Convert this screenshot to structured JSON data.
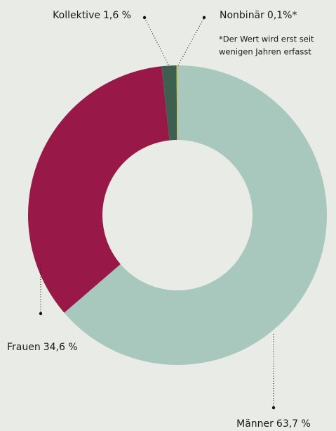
{
  "chart_data": {
    "type": "donut",
    "categories": [
      "Männer",
      "Frauen",
      "Kollektive",
      "Nonbinär"
    ],
    "values": [
      63.7,
      34.6,
      1.6,
      0.1
    ],
    "value_labels": [
      "63,7 %",
      "34,6 %",
      "1,6 %",
      "0,1%*"
    ],
    "colors": [
      "#a9c8bd",
      "#981848",
      "#3e5f4f",
      "#d2c21c"
    ],
    "annotations": [
      "*Der Wert wird erst seit",
      "wenigen Jahren erfasst"
    ]
  }
}
